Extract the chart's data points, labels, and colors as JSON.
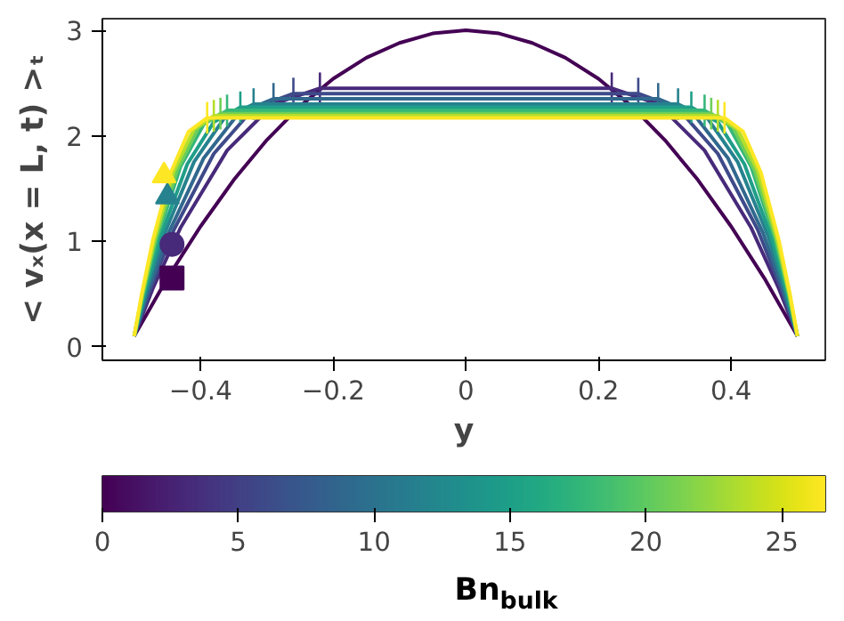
{
  "chart_data": {
    "type": "line",
    "xlabel": "y",
    "ylabel": "< vₓ(x = L, t) >ₜ",
    "clabel": "Bn$_{bulk}$",
    "xlim": [
      -0.548,
      0.542
    ],
    "ylim": [
      -0.13,
      3.11
    ],
    "xticks": [
      -0.4,
      -0.2,
      0,
      0.2,
      0.4
    ],
    "yticks": [
      0,
      1,
      2,
      3
    ],
    "clim": [
      0,
      26.6
    ],
    "cticks": [
      0,
      5,
      10,
      15,
      20,
      25
    ],
    "grid": false,
    "series": [
      {
        "color": "#440154",
        "x": [
          -0.5,
          -0.45,
          -0.4,
          -0.35,
          -0.3,
          -0.25,
          -0.2,
          -0.15,
          -0.1,
          -0.05,
          0,
          0.05,
          0.1,
          0.15,
          0.2,
          0.25,
          0.3,
          0.35,
          0.4,
          0.45,
          0.5
        ],
        "values": [
          0.1,
          0.65,
          1.14,
          1.58,
          1.96,
          2.28,
          2.54,
          2.74,
          2.88,
          2.97,
          3.0,
          2.97,
          2.88,
          2.74,
          2.54,
          2.28,
          1.96,
          1.58,
          1.14,
          0.65,
          0.1
        ]
      },
      {
        "color": "#472a7a",
        "x": [
          -0.5,
          -0.472,
          -0.43,
          -0.36,
          -0.29,
          -0.22,
          0.22,
          0.29,
          0.36,
          0.43,
          0.472,
          0.5
        ],
        "values": [
          0.1,
          0.55,
          1.13,
          1.86,
          2.3,
          2.45,
          2.45,
          2.3,
          1.86,
          1.13,
          0.55,
          0.1
        ],
        "errors": [
          null,
          null,
          null,
          null,
          null,
          0.15,
          0.15,
          null,
          null,
          null,
          null,
          null
        ]
      },
      {
        "color": "#3e4a89",
        "x": [
          -0.5,
          -0.476,
          -0.44,
          -0.38,
          -0.32,
          -0.26,
          0.26,
          0.32,
          0.38,
          0.44,
          0.476,
          0.5
        ],
        "values": [
          0.1,
          0.54,
          1.11,
          1.83,
          2.26,
          2.4,
          2.4,
          2.26,
          1.83,
          1.11,
          0.54,
          0.1
        ],
        "errors": [
          null,
          null,
          null,
          null,
          null,
          0.15,
          0.15,
          null,
          null,
          null,
          null,
          null
        ]
      },
      {
        "color": "#31688e",
        "x": [
          -0.5,
          -0.479,
          -0.448,
          -0.395,
          -0.343,
          -0.29,
          0.29,
          0.343,
          0.395,
          0.448,
          0.479,
          0.5
        ],
        "values": [
          0.1,
          0.53,
          1.08,
          1.79,
          2.21,
          2.35,
          2.35,
          2.21,
          1.79,
          1.08,
          0.53,
          0.1
        ],
        "errors": [
          null,
          null,
          null,
          null,
          null,
          0.15,
          0.15,
          null,
          null,
          null,
          null,
          null
        ]
      },
      {
        "color": "#26828e",
        "x": [
          -0.5,
          -0.482,
          -0.455,
          -0.41,
          -0.365,
          -0.32,
          0.32,
          0.365,
          0.41,
          0.455,
          0.482,
          0.5
        ],
        "values": [
          0.1,
          0.52,
          1.06,
          1.75,
          2.16,
          2.3,
          2.3,
          2.16,
          1.75,
          1.06,
          0.52,
          0.1
        ],
        "errors": [
          null,
          null,
          null,
          null,
          null,
          0.15,
          0.15,
          null,
          null,
          null,
          null,
          null
        ]
      },
      {
        "color": "#1f9e89",
        "x": [
          -0.5,
          -0.484,
          -0.46,
          -0.42,
          -0.38,
          -0.34,
          0.34,
          0.38,
          0.42,
          0.46,
          0.484,
          0.5
        ],
        "values": [
          0.1,
          0.51,
          1.05,
          1.73,
          2.13,
          2.27,
          2.27,
          2.13,
          1.73,
          1.05,
          0.51,
          0.1
        ],
        "errors": [
          null,
          null,
          null,
          null,
          null,
          0.15,
          0.15,
          null,
          null,
          null,
          null,
          null
        ]
      },
      {
        "color": "#35b779",
        "x": [
          -0.5,
          -0.486,
          -0.465,
          -0.43,
          -0.395,
          -0.36,
          0.36,
          0.395,
          0.43,
          0.465,
          0.486,
          0.5
        ],
        "values": [
          0.1,
          0.51,
          1.04,
          1.71,
          2.11,
          2.24,
          2.24,
          2.11,
          1.71,
          1.04,
          0.51,
          0.1
        ],
        "errors": [
          null,
          null,
          null,
          null,
          null,
          0.15,
          0.15,
          null,
          null,
          null,
          null,
          null
        ]
      },
      {
        "color": "#6ece58",
        "x": [
          -0.5,
          -0.487,
          -0.468,
          -0.435,
          -0.403,
          -0.37,
          0.37,
          0.403,
          0.435,
          0.468,
          0.487,
          0.5
        ],
        "values": [
          0.1,
          0.5,
          1.02,
          1.68,
          2.08,
          2.21,
          2.21,
          2.08,
          1.68,
          1.02,
          0.5,
          0.1
        ],
        "errors": [
          null,
          null,
          null,
          null,
          null,
          0.15,
          0.15,
          null,
          null,
          null,
          null,
          null
        ]
      },
      {
        "color": "#b5de2b",
        "x": [
          -0.5,
          -0.488,
          -0.47,
          -0.44,
          -0.41,
          -0.38,
          0.38,
          0.41,
          0.44,
          0.47,
          0.488,
          0.5
        ],
        "values": [
          0.1,
          0.5,
          1.01,
          1.67,
          2.06,
          2.19,
          2.19,
          2.06,
          1.67,
          1.01,
          0.5,
          0.1
        ],
        "errors": [
          null,
          null,
          null,
          null,
          null,
          0.15,
          0.15,
          null,
          null,
          null,
          null,
          null
        ]
      },
      {
        "color": "#fde725",
        "x": [
          -0.5,
          -0.489,
          -0.472,
          -0.445,
          -0.418,
          -0.39,
          0.39,
          0.418,
          0.445,
          0.472,
          0.489,
          0.5
        ],
        "values": [
          0.1,
          0.49,
          1.01,
          1.65,
          2.04,
          2.17,
          2.17,
          2.04,
          1.65,
          1.01,
          0.49,
          0.1
        ],
        "errors": [
          null,
          null,
          null,
          null,
          null,
          0.15,
          0.15,
          null,
          null,
          null,
          null,
          null
        ]
      },
      {
        "type": "scatter",
        "marker": "square",
        "color": "#440154",
        "x": [
          -0.443
        ],
        "values": [
          0.65
        ]
      },
      {
        "type": "scatter",
        "marker": "circle",
        "color": "#472a7a",
        "x": [
          -0.443
        ],
        "values": [
          0.97
        ]
      },
      {
        "type": "scatter",
        "marker": "triangle",
        "color": "#26828e",
        "x": [
          -0.45
        ],
        "values": [
          1.42
        ]
      },
      {
        "type": "scatter",
        "marker": "triangle",
        "color": "#fde725",
        "x": [
          -0.455
        ],
        "values": [
          1.62
        ]
      }
    ]
  }
}
